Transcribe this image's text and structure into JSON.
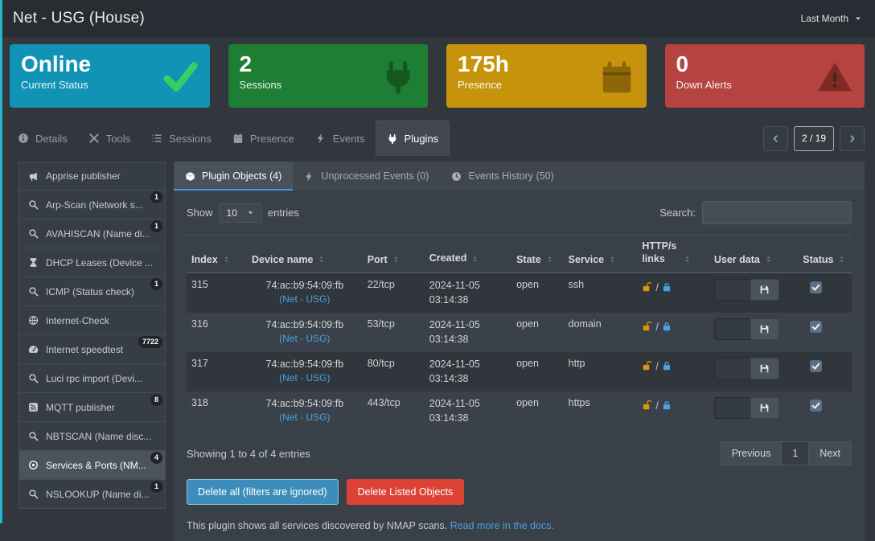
{
  "colors": {
    "page_accent": "#20b7cb",
    "link": "#4aa3df",
    "lock_open": "#e0930b",
    "lock_closed": "#4aa3df",
    "button_primary": "#3d8dbc",
    "button_danger": "#dc4336"
  },
  "header": {
    "title": "Net - USG (House)",
    "period": "Last Month"
  },
  "cards": [
    {
      "value": "Online",
      "label": "Current Status",
      "icon": "check",
      "bg": "#1093b5",
      "icon_color": "#35d063"
    },
    {
      "value": "2",
      "label": "Sessions",
      "icon": "plug",
      "bg": "#1e7e34",
      "icon_color": "#14571f"
    },
    {
      "value": "175h",
      "label": "Presence",
      "icon": "calendar",
      "bg": "#c7930d",
      "icon_color": "#8c6607"
    },
    {
      "value": "0",
      "label": "Down Alerts",
      "icon": "warning",
      "bg": "#b5433f",
      "icon_color": "#7e2b27"
    }
  ],
  "tabs": {
    "items": [
      {
        "label": "Details",
        "icon": "info",
        "active": false
      },
      {
        "label": "Tools",
        "icon": "tools",
        "active": false
      },
      {
        "label": "Sessions",
        "icon": "list",
        "active": false
      },
      {
        "label": "Presence",
        "icon": "calendar",
        "active": false
      },
      {
        "label": "Events",
        "icon": "bolt",
        "active": false
      },
      {
        "label": "Plugins",
        "icon": "plug",
        "active": true
      }
    ],
    "pager": "2 / 19"
  },
  "sidebar": [
    {
      "label": "Apprise publisher",
      "icon": "megaphone",
      "badge": "",
      "active": false
    },
    {
      "label": "Arp-Scan (Network s...",
      "icon": "search",
      "badge": "1",
      "active": false
    },
    {
      "label": "AVAHISCAN (Name di...",
      "icon": "search",
      "badge": "1",
      "active": false
    },
    {
      "label": "DHCP Leases (Device ...",
      "icon": "hourglass",
      "badge": "",
      "active": false
    },
    {
      "label": "ICMP (Status check)",
      "icon": "search",
      "badge": "1",
      "active": false
    },
    {
      "label": "Internet-Check",
      "icon": "globe",
      "badge": "",
      "active": false
    },
    {
      "label": "Internet speedtest",
      "icon": "gauge",
      "badge": "7722",
      "active": false
    },
    {
      "label": "Luci rpc import (Devi...",
      "icon": "search",
      "badge": "",
      "active": false
    },
    {
      "label": "MQTT publisher",
      "icon": "mqtt",
      "badge": "8",
      "active": false
    },
    {
      "label": "NBTSCAN (Name disc...",
      "icon": "search",
      "badge": "",
      "active": false
    },
    {
      "label": "Services & Ports (NM...",
      "icon": "target",
      "badge": "4",
      "active": true
    },
    {
      "label": "NSLOOKUP (Name di...",
      "icon": "search",
      "badge": "1",
      "active": false
    }
  ],
  "panel": {
    "tabs": [
      {
        "label": "Plugin Objects (4)",
        "icon": "cube",
        "active": true
      },
      {
        "label": "Unprocessed Events (0)",
        "icon": "bolt",
        "active": false
      },
      {
        "label": "Events History (50)",
        "icon": "clock",
        "active": false
      }
    ],
    "show_label": "Show",
    "page_size": "10",
    "entries_label": "entries",
    "search_label": "Search:",
    "columns": [
      "Index",
      "Device name",
      "Port",
      "Created",
      "State",
      "Service",
      "HTTP/s links",
      "User data",
      "Status"
    ],
    "rows": [
      {
        "index": "315",
        "device": "74:ac:b9:54:09:fb",
        "device_sub": "(Net - USG)",
        "port": "22/tcp",
        "created_date": "2024-11-05",
        "created_time": "03:14:38",
        "state": "open",
        "service": "ssh",
        "status_checked": true
      },
      {
        "index": "316",
        "device": "74:ac:b9:54:09:fb",
        "device_sub": "(Net - USG)",
        "port": "53/tcp",
        "created_date": "2024-11-05",
        "created_time": "03:14:38",
        "state": "open",
        "service": "domain",
        "status_checked": true
      },
      {
        "index": "317",
        "device": "74:ac:b9:54:09:fb",
        "device_sub": "(Net - USG)",
        "port": "80/tcp",
        "created_date": "2024-11-05",
        "created_time": "03:14:38",
        "state": "open",
        "service": "http",
        "status_checked": true
      },
      {
        "index": "318",
        "device": "74:ac:b9:54:09:fb",
        "device_sub": "(Net - USG)",
        "port": "443/tcp",
        "created_date": "2024-11-05",
        "created_time": "03:14:38",
        "state": "open",
        "service": "https",
        "status_checked": true
      }
    ],
    "summary": "Showing 1 to 4 of 4 entries",
    "pagination": {
      "previous": "Previous",
      "page": "1",
      "next": "Next"
    },
    "delete_all": "Delete all (filters are ignored)",
    "delete_listed": "Delete Listed Objects",
    "note": "This plugin shows all services discovered by NMAP scans.",
    "note_link": "Read more in the docs."
  }
}
